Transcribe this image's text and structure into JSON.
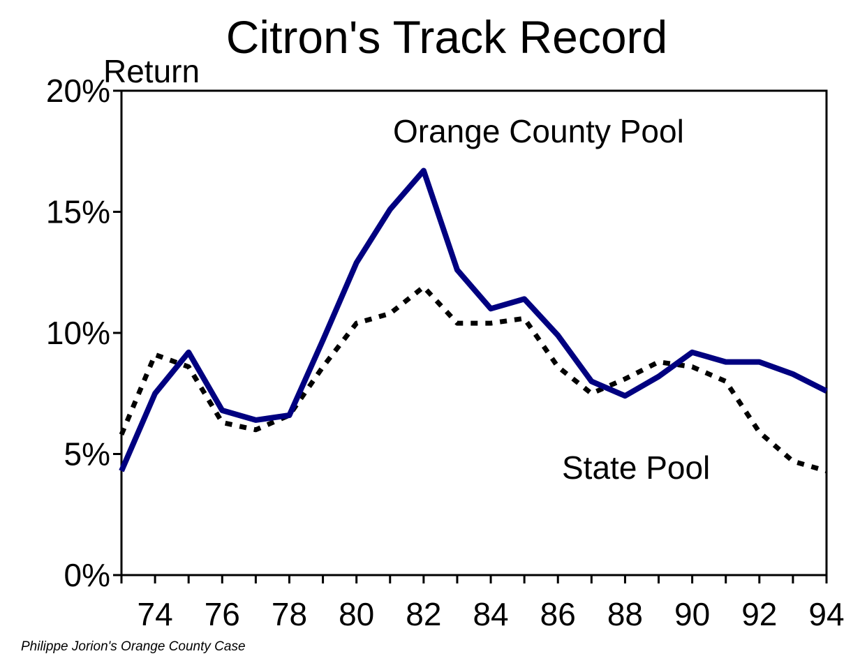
{
  "chart_data": {
    "type": "line",
    "title": "Citron's Track Record",
    "ylabel": "Return",
    "xlabel": "",
    "x": [
      73,
      74,
      75,
      76,
      77,
      78,
      79,
      80,
      81,
      82,
      83,
      84,
      85,
      86,
      87,
      88,
      89,
      90,
      91,
      92,
      93,
      94
    ],
    "x_tick_labels": [
      "74",
      "76",
      "78",
      "80",
      "82",
      "84",
      "86",
      "88",
      "90",
      "92",
      "94"
    ],
    "y_tick_labels": [
      "0%",
      "5%",
      "10%",
      "15%",
      "20%"
    ],
    "xlim": [
      73,
      94
    ],
    "ylim": [
      0,
      20
    ],
    "grid": false,
    "series": [
      {
        "name": "Orange County Pool",
        "color": "#000080",
        "style": "solid",
        "values": [
          4.3,
          7.5,
          9.2,
          6.8,
          6.4,
          6.6,
          9.7,
          12.9,
          15.1,
          16.7,
          12.6,
          11.0,
          11.4,
          9.9,
          8.0,
          7.4,
          8.2,
          9.2,
          8.8,
          8.8,
          8.3,
          7.6
        ]
      },
      {
        "name": "State Pool",
        "color": "#000000",
        "style": "dotted",
        "values": [
          5.8,
          9.1,
          8.6,
          6.3,
          6.0,
          6.6,
          8.6,
          10.4,
          10.8,
          11.9,
          10.4,
          10.4,
          10.6,
          8.6,
          7.5,
          8.1,
          8.8,
          8.6,
          8.0,
          5.9,
          4.7,
          4.3
        ]
      }
    ],
    "annotations": {
      "orange_county_label": "Orange County Pool",
      "state_pool_label": "State Pool"
    },
    "source_note": "Philippe Jorion's Orange County Case"
  }
}
